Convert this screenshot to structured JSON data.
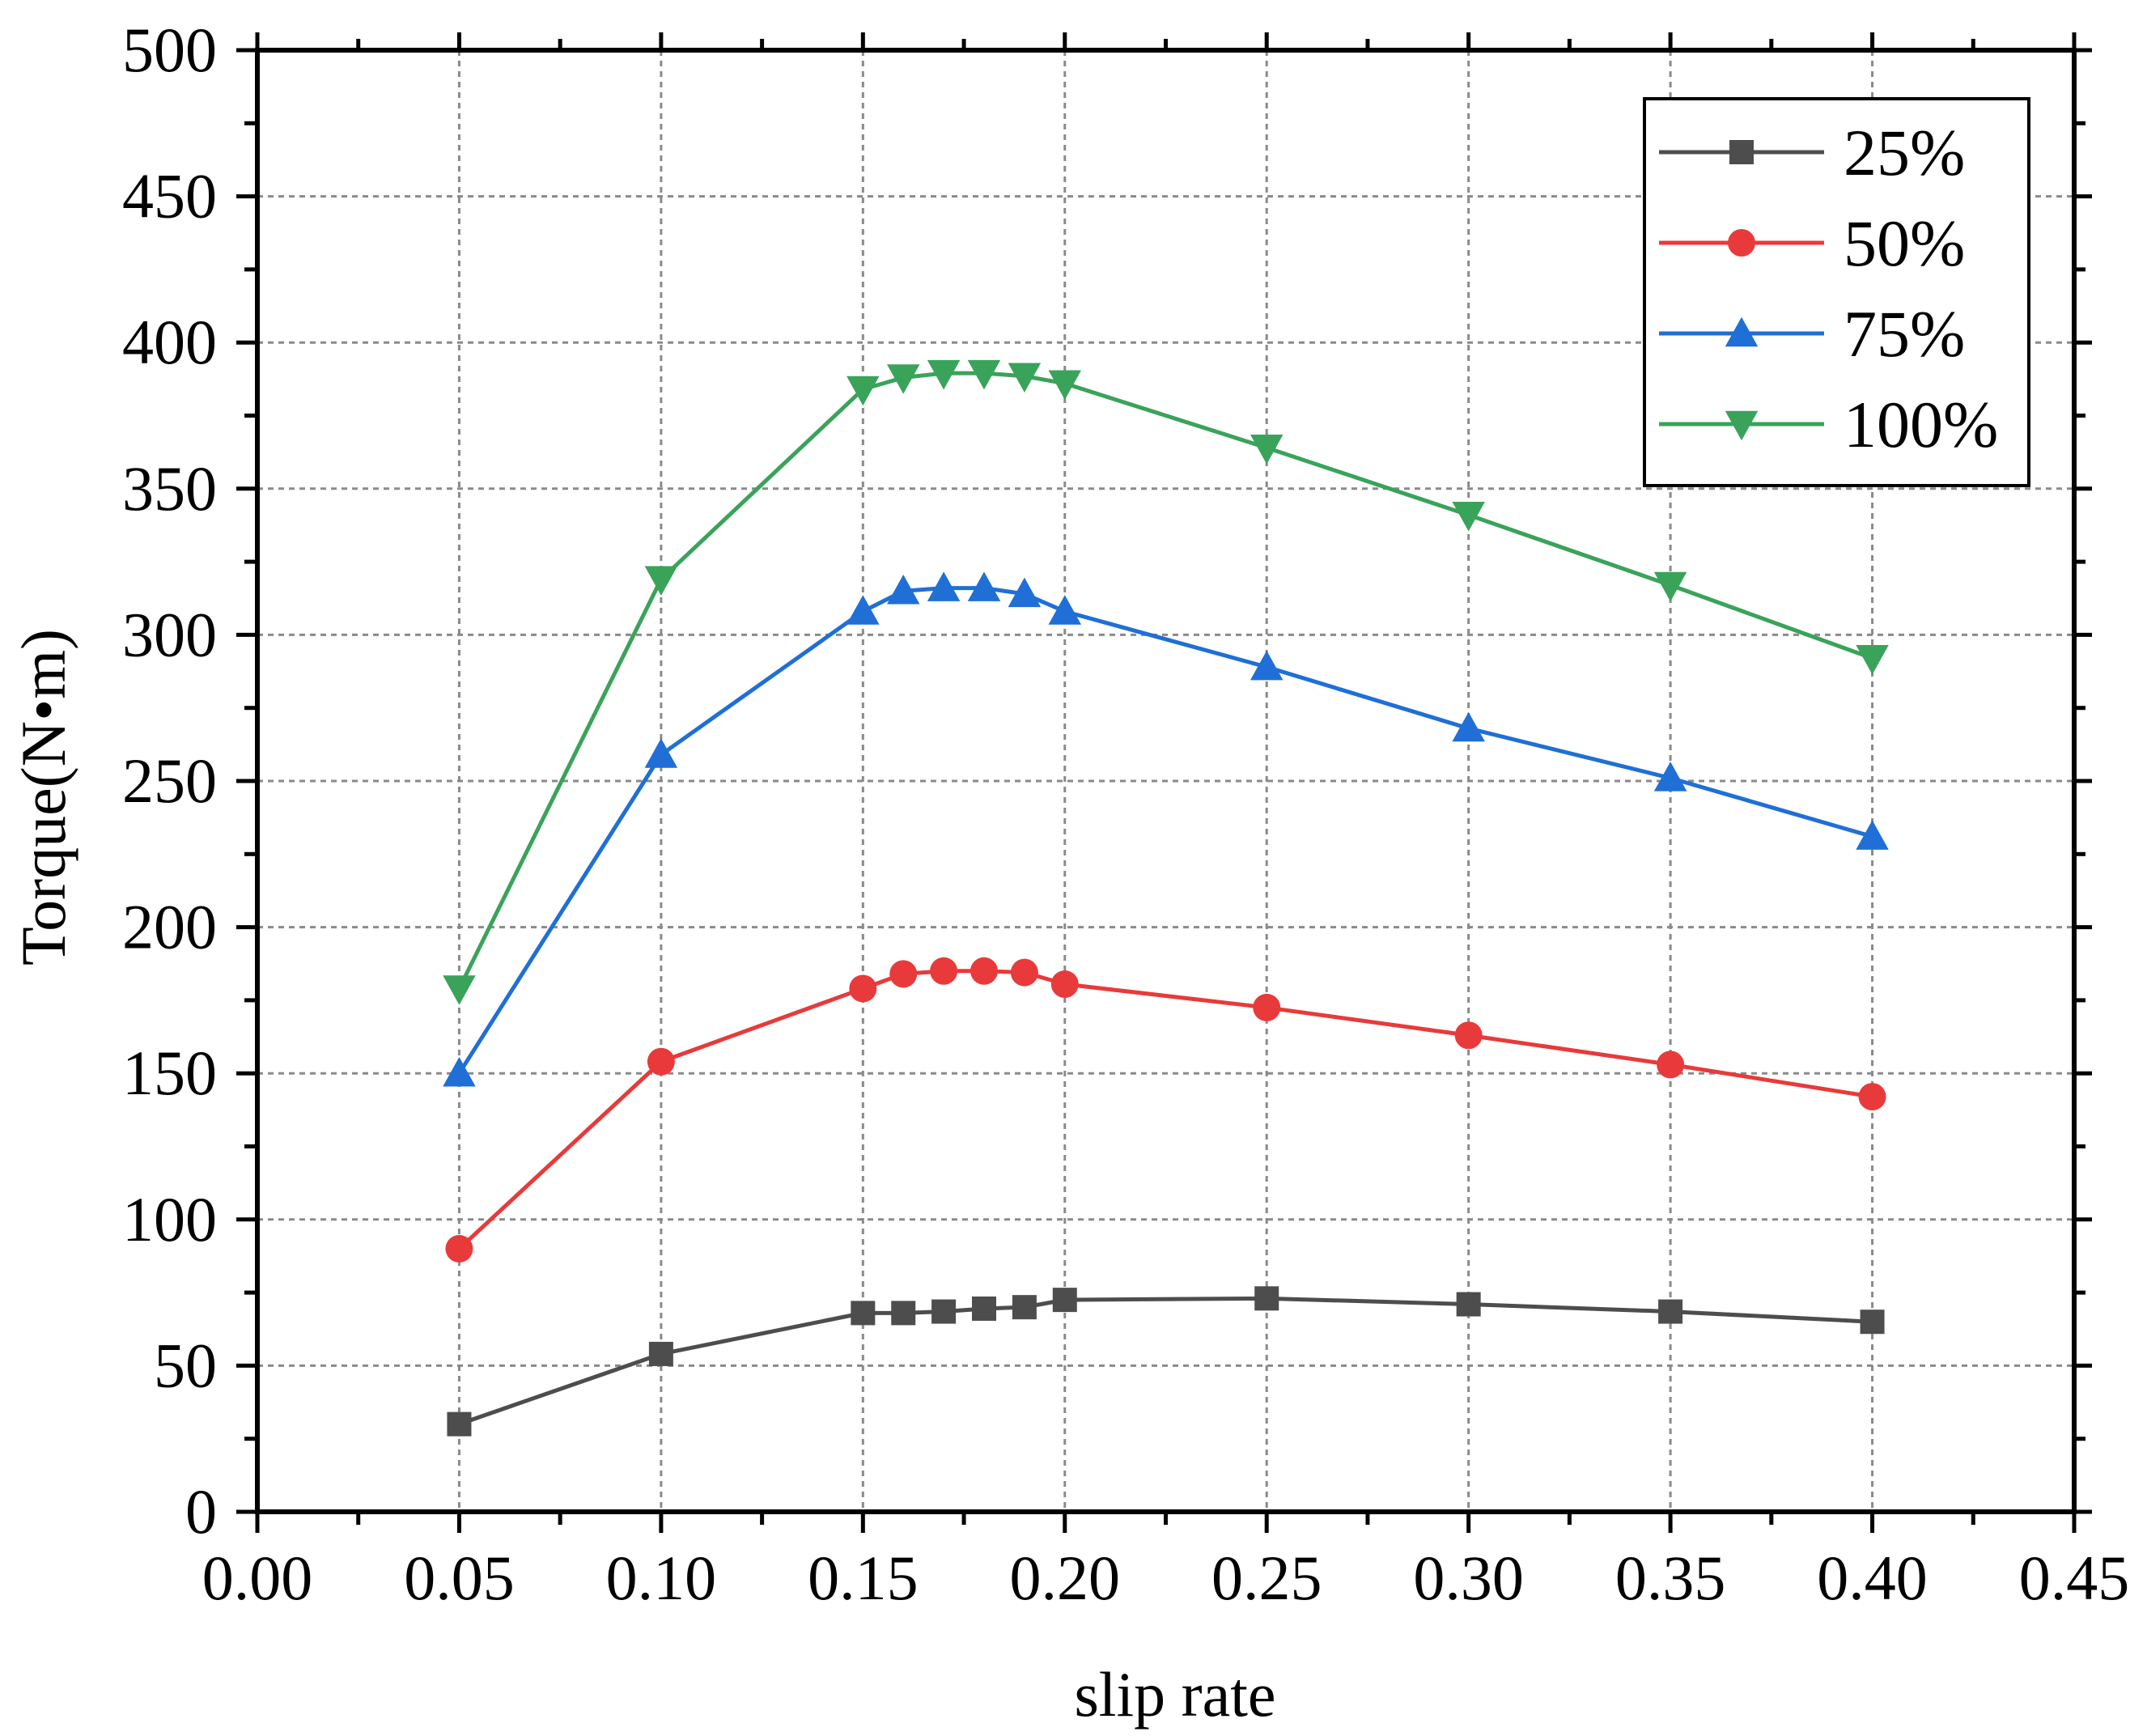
{
  "chart_data": {
    "type": "line",
    "xlabel": "slip rate",
    "ylabel": "Torque(N•m)",
    "xlim": [
      0.0,
      0.45
    ],
    "ylim": [
      0,
      500
    ],
    "xticks": [
      "0.00",
      "0.05",
      "0.10",
      "0.15",
      "0.20",
      "0.25",
      "0.30",
      "0.35",
      "0.40",
      "0.45"
    ],
    "xtick_values": [
      0.0,
      0.05,
      0.1,
      0.15,
      0.2,
      0.25,
      0.3,
      0.35,
      0.4,
      0.45
    ],
    "yticks": [
      "0",
      "50",
      "100",
      "150",
      "200",
      "250",
      "300",
      "350",
      "400",
      "450",
      "500"
    ],
    "ytick_values": [
      0,
      50,
      100,
      150,
      200,
      250,
      300,
      350,
      400,
      450,
      500
    ],
    "grid": true,
    "legend_position": "top-right",
    "x": [
      0.05,
      0.1,
      0.15,
      0.16,
      0.17,
      0.18,
      0.19,
      0.2,
      0.25,
      0.3,
      0.35,
      0.4
    ],
    "series": [
      {
        "name": "25%",
        "color": "#4d4d4d",
        "marker": "square",
        "values": [
          30,
          54,
          68,
          68,
          68.5,
          69.5,
          70,
          72.5,
          73,
          71,
          68.5,
          65
        ]
      },
      {
        "name": "50%",
        "color": "#e83a3a",
        "marker": "circle",
        "values": [
          90,
          154,
          179,
          184,
          185,
          185,
          184.5,
          180.5,
          172.5,
          163,
          153,
          142
        ]
      },
      {
        "name": "75%",
        "color": "#1f6fd6",
        "marker": "triangle-up",
        "values": [
          150,
          259,
          308,
          315,
          316,
          316,
          314,
          308,
          289,
          268,
          251,
          231
        ]
      },
      {
        "name": "100%",
        "color": "#3aa35a",
        "marker": "triangle-down",
        "values": [
          179,
          319,
          384,
          388,
          389.5,
          389.5,
          388.5,
          386,
          364,
          341,
          317,
          292
        ]
      }
    ]
  }
}
